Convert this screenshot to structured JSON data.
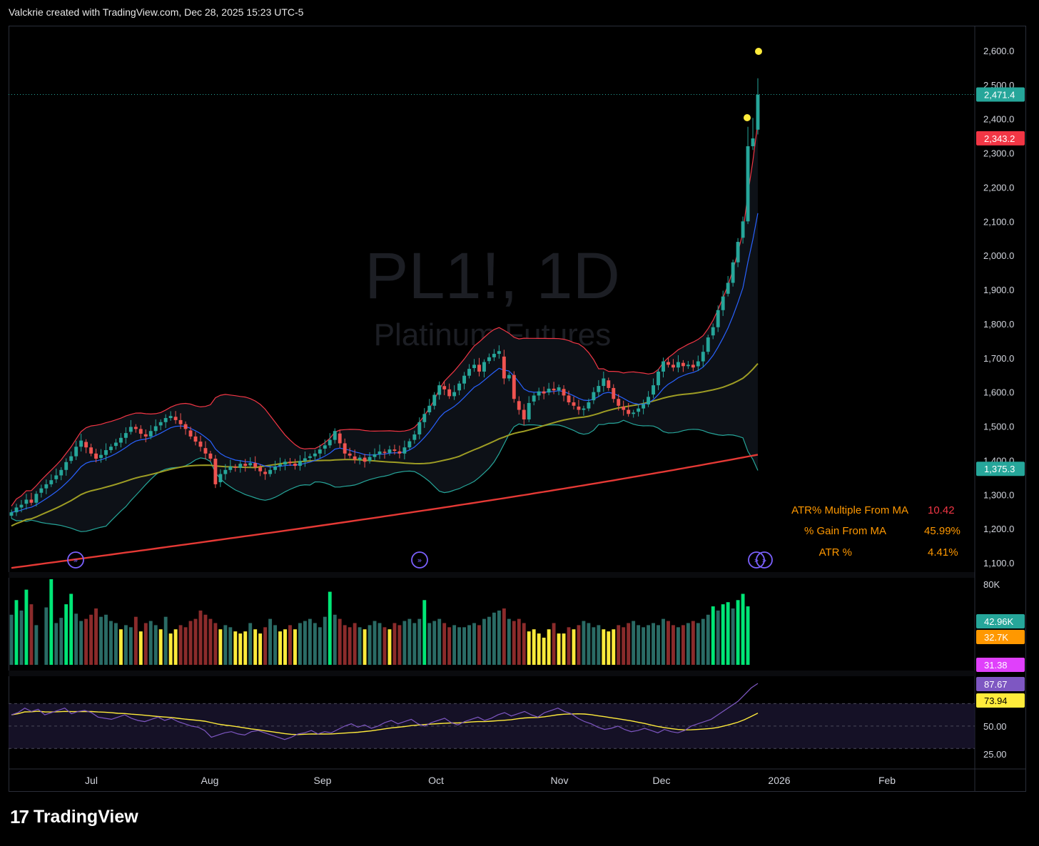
{
  "header": {
    "text": "Valckrie created with TradingView.com, Dec 28, 2025 15:23 UTC-5"
  },
  "watermark": {
    "symbol": "PL1!, 1D",
    "name": "Platinum Futures"
  },
  "footer": {
    "logo_text": "TradingView",
    "logo_mark": "17"
  },
  "stats": [
    {
      "label": "ATR% Multiple From MA",
      "value": "10.42",
      "color": "#f23645"
    },
    {
      "label": "% Gain From MA",
      "value": "45.99%",
      "color": "#ff9800"
    },
    {
      "label": "ATR %",
      "value": "4.41%",
      "color": "#ff9800"
    }
  ],
  "price_badges": [
    {
      "text": "2,471.4",
      "price": 2471.4,
      "bg": "#26a69a"
    },
    {
      "text": "2,343.2",
      "price": 2343.2,
      "bg": "#f23645"
    },
    {
      "text": "1,375.3",
      "price": 1375.3,
      "bg": "#26a69a"
    }
  ],
  "volume_badges": [
    {
      "text": "42.96K",
      "value": 42.96,
      "bg": "#26a69a"
    },
    {
      "text": "32.7K",
      "value": 32.7,
      "bg": "#ff9800"
    },
    {
      "text": "31.38",
      "value": 31.38,
      "bg": "#e040fb"
    }
  ],
  "rsi_badges": [
    {
      "text": "87.67",
      "value": 87.67,
      "bg": "#7e57c2"
    },
    {
      "text": "73.94",
      "value": 73.94,
      "bg": "#ffeb3b"
    }
  ],
  "chart_data": {
    "type": "candlestick",
    "title": "",
    "price_axis": {
      "min": 1100,
      "max": 2600,
      "step": 100,
      "ticks": [
        "1,100.0",
        "1,200.0",
        "1,300.0",
        "1,400.0",
        "1,500.0",
        "1,600.0",
        "1,700.0",
        "1,800.0",
        "1,900.0",
        "2,000.0",
        "2,100.0",
        "2,200.0",
        "2,300.0",
        "2,400.0",
        "2,500.0",
        "2,600.0"
      ]
    },
    "volume_axis": {
      "max_label": "80K"
    },
    "rsi_axis": {
      "ticks": [
        "25.00",
        "50.00"
      ],
      "levels": [
        70,
        50,
        30
      ]
    },
    "time_axis": [
      "Jul",
      "Aug",
      "Sep",
      "Oct",
      "Nov",
      "Dec",
      "2026",
      "Feb"
    ],
    "closes": [
      1248,
      1262,
      1270,
      1285,
      1276,
      1302,
      1318,
      1330,
      1342,
      1356,
      1372,
      1395,
      1412,
      1440,
      1458,
      1438,
      1420,
      1405,
      1416,
      1430,
      1440,
      1452,
      1466,
      1480,
      1498,
      1492,
      1478,
      1470,
      1486,
      1500,
      1512,
      1524,
      1530,
      1518,
      1506,
      1492,
      1470,
      1455,
      1440,
      1420,
      1405,
      1330,
      1360,
      1372,
      1382,
      1378,
      1390,
      1384,
      1392,
      1380,
      1368,
      1360,
      1372,
      1382,
      1388,
      1396,
      1392,
      1384,
      1398,
      1406,
      1412,
      1420,
      1432,
      1444,
      1460,
      1486,
      1450,
      1420,
      1414,
      1402,
      1408,
      1396,
      1410,
      1418,
      1426,
      1422,
      1432,
      1428,
      1420,
      1438,
      1456,
      1476,
      1512,
      1536,
      1560,
      1592,
      1620,
      1608,
      1588,
      1600,
      1625,
      1648,
      1668,
      1680,
      1660,
      1688,
      1702,
      1712,
      1720,
      1640,
      1650,
      1580,
      1548,
      1520,
      1568,
      1590,
      1602,
      1596,
      1610,
      1605,
      1614,
      1590,
      1570,
      1560,
      1548,
      1552,
      1570,
      1600,
      1618,
      1640,
      1612,
      1580,
      1560,
      1548,
      1536,
      1540,
      1552,
      1564,
      1586,
      1620,
      1660,
      1690,
      1680,
      1672,
      1688,
      1676,
      1680,
      1672,
      1690,
      1718,
      1760,
      1790,
      1840,
      1880,
      1920,
      1980,
      2040,
      2100,
      2320,
      2343,
      2471
    ],
    "volume": [
      48,
      62,
      52,
      72,
      58,
      38,
      0,
      55,
      82,
      40,
      45,
      58,
      68,
      49,
      42,
      44,
      48,
      54,
      46,
      48,
      42,
      40,
      34,
      38,
      36,
      46,
      32,
      40,
      42,
      38,
      34,
      46,
      30,
      34,
      38,
      36,
      42,
      44,
      52,
      48,
      44,
      40,
      34,
      38,
      36,
      32,
      30,
      32,
      40,
      34,
      30,
      36,
      44,
      38,
      32,
      34,
      38,
      34,
      40,
      42,
      44,
      40,
      36,
      46,
      70,
      48,
      44,
      38,
      36,
      40,
      36,
      34,
      38,
      42,
      40,
      36,
      34,
      40,
      38,
      42,
      44,
      40,
      44,
      62,
      40,
      42,
      44,
      40,
      36,
      38,
      36,
      36,
      38,
      40,
      38,
      44,
      46,
      50,
      52,
      54,
      44,
      42,
      44,
      40,
      32,
      34,
      30,
      26,
      34,
      40,
      30,
      30,
      36,
      34,
      38,
      42,
      40,
      36,
      38,
      34,
      32,
      34,
      38,
      36,
      40,
      42,
      38,
      36,
      38,
      40,
      38,
      44,
      42,
      38,
      36,
      38,
      40,
      42,
      40,
      44,
      48,
      56,
      52,
      58,
      60,
      54,
      62,
      68,
      56
    ],
    "rsi": [
      60,
      62,
      66,
      63,
      65,
      60,
      62,
      64,
      66,
      61,
      63,
      64,
      62,
      58,
      57,
      56,
      58,
      60,
      57,
      55,
      54,
      56,
      58,
      55,
      57,
      54,
      52,
      50,
      49,
      46,
      40,
      42,
      44,
      45,
      43,
      42,
      45,
      46,
      44,
      42,
      40,
      38,
      40,
      43,
      44,
      46,
      43,
      45,
      44,
      47,
      50,
      52,
      49,
      51,
      48,
      50,
      53,
      55,
      52,
      54,
      56,
      52,
      50,
      53,
      55,
      57,
      53,
      51,
      54,
      56,
      58,
      55,
      57,
      60,
      62,
      59,
      61,
      63,
      60,
      58,
      62,
      64,
      66,
      63,
      61,
      57,
      54,
      52,
      49,
      47,
      48,
      50,
      47,
      45,
      46,
      48,
      46,
      44,
      47,
      45,
      44,
      46,
      50,
      52,
      54,
      56,
      60,
      64,
      68,
      72,
      78,
      84,
      88
    ]
  }
}
